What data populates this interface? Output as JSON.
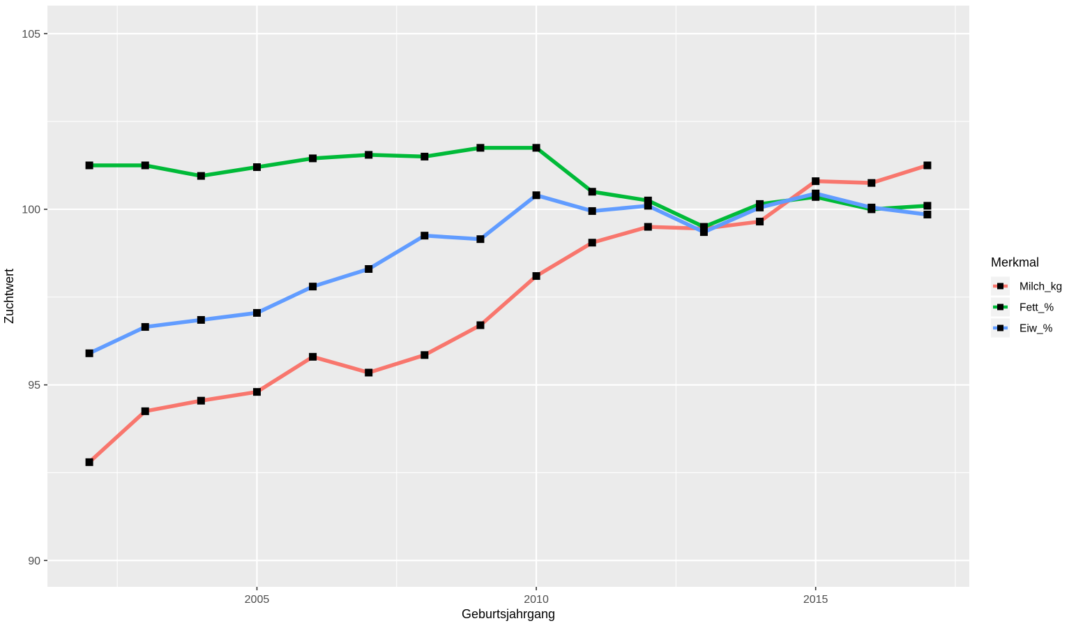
{
  "chart_data": {
    "type": "line",
    "title": "",
    "xlabel": "Geburtsjahrgang",
    "ylabel": "Zuchtwert",
    "legend_title": "Merkmal",
    "legend_position": "right",
    "x": [
      2002,
      2003,
      2004,
      2005,
      2006,
      2007,
      2008,
      2009,
      2010,
      2011,
      2012,
      2013,
      2014,
      2015,
      2016,
      2017
    ],
    "series": [
      {
        "name": "Milch_kg",
        "color": "#F8766D",
        "values": [
          92.8,
          94.25,
          94.55,
          94.8,
          95.8,
          95.35,
          95.85,
          96.7,
          98.1,
          99.05,
          99.5,
          99.45,
          99.65,
          100.8,
          100.75,
          101.25
        ]
      },
      {
        "name": "Fett_%",
        "color": "#00BA38",
        "values": [
          101.25,
          101.25,
          100.95,
          101.2,
          101.45,
          101.55,
          101.5,
          101.75,
          101.75,
          100.5,
          100.25,
          99.5,
          100.15,
          100.35,
          100.0,
          100.1
        ]
      },
      {
        "name": "Eiw_%",
        "color": "#619CFF",
        "values": [
          95.9,
          96.65,
          96.85,
          97.05,
          97.8,
          98.3,
          99.25,
          99.15,
          100.4,
          99.95,
          100.1,
          99.35,
          100.05,
          100.45,
          100.05,
          99.85
        ]
      }
    ],
    "x_ticks": [
      2005,
      2010,
      2015
    ],
    "x_tick_labels": [
      "2005",
      "2010",
      "2015"
    ],
    "x_minor_ticks": [
      2002.5,
      2007.5,
      2012.5,
      2017.5
    ],
    "y_ticks": [
      90,
      95,
      100,
      105
    ],
    "y_tick_labels": [
      "90",
      "95",
      "100",
      "105"
    ],
    "y_minor_ticks": [
      92.5,
      97.5,
      102.5
    ],
    "xlim": [
      2001.25,
      2017.75
    ],
    "ylim": [
      89.25,
      105.8
    ],
    "grid": true,
    "marker": "square",
    "marker_color": "#000000"
  },
  "style": {
    "panel_background": "#EBEBEB",
    "grid_color": "#FFFFFF",
    "outer_background": "#FFFFFF",
    "tick_label_color": "#4D4D4D",
    "tick_mark_color": "#333333",
    "axis_title_color": "#000000",
    "legend_title_color": "#000000",
    "legend_label_color": "#000000",
    "legend_key_background": "#F2F2F2"
  }
}
